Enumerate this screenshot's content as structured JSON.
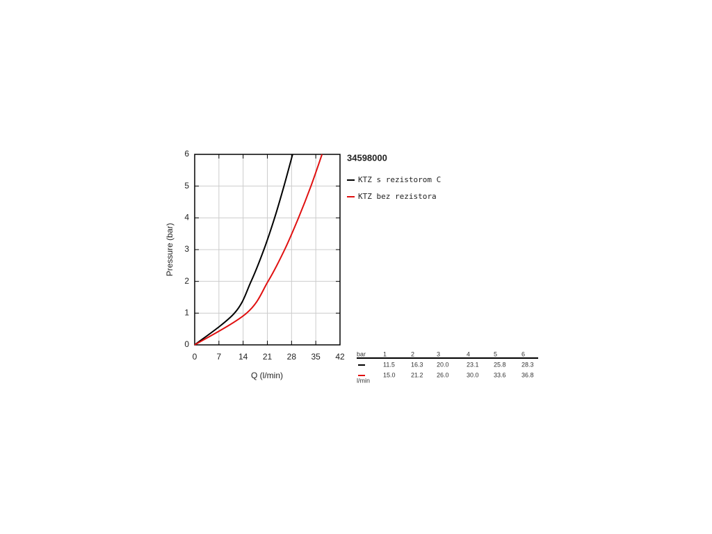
{
  "chart_data": {
    "type": "line",
    "title": "34598000",
    "xlabel": "Q (l/min)",
    "ylabel": "Pressure (bar)",
    "xlim": [
      0,
      42
    ],
    "ylim": [
      0,
      6
    ],
    "xticks": [
      0,
      7,
      14,
      21,
      28,
      35,
      42
    ],
    "yticks": [
      0,
      1,
      2,
      3,
      4,
      5,
      6
    ],
    "grid": true,
    "series": [
      {
        "name": "KTZ s rezistorom C",
        "color": "#000000",
        "x": [
          0,
          11.5,
          16.3,
          20.0,
          23.1,
          25.8,
          28.3
        ],
        "values": [
          0,
          1,
          2,
          3,
          4,
          5,
          6
        ]
      },
      {
        "name": "KTZ bez rezistora",
        "color": "#e01010",
        "x": [
          0,
          15.0,
          21.2,
          26.0,
          30.0,
          33.6,
          36.8
        ],
        "values": [
          0,
          1,
          2,
          3,
          4,
          5,
          6
        ]
      }
    ]
  },
  "table": {
    "header": [
      "bar",
      "1",
      "2",
      "3",
      "4",
      "5",
      "6"
    ],
    "rows": [
      [
        "11.5",
        "16.3",
        "20.0",
        "23.1",
        "25.8",
        "28.3"
      ],
      [
        "15.0",
        "21.2",
        "26.0",
        "30.0",
        "33.6",
        "36.8"
      ]
    ],
    "unit": "l/min"
  }
}
